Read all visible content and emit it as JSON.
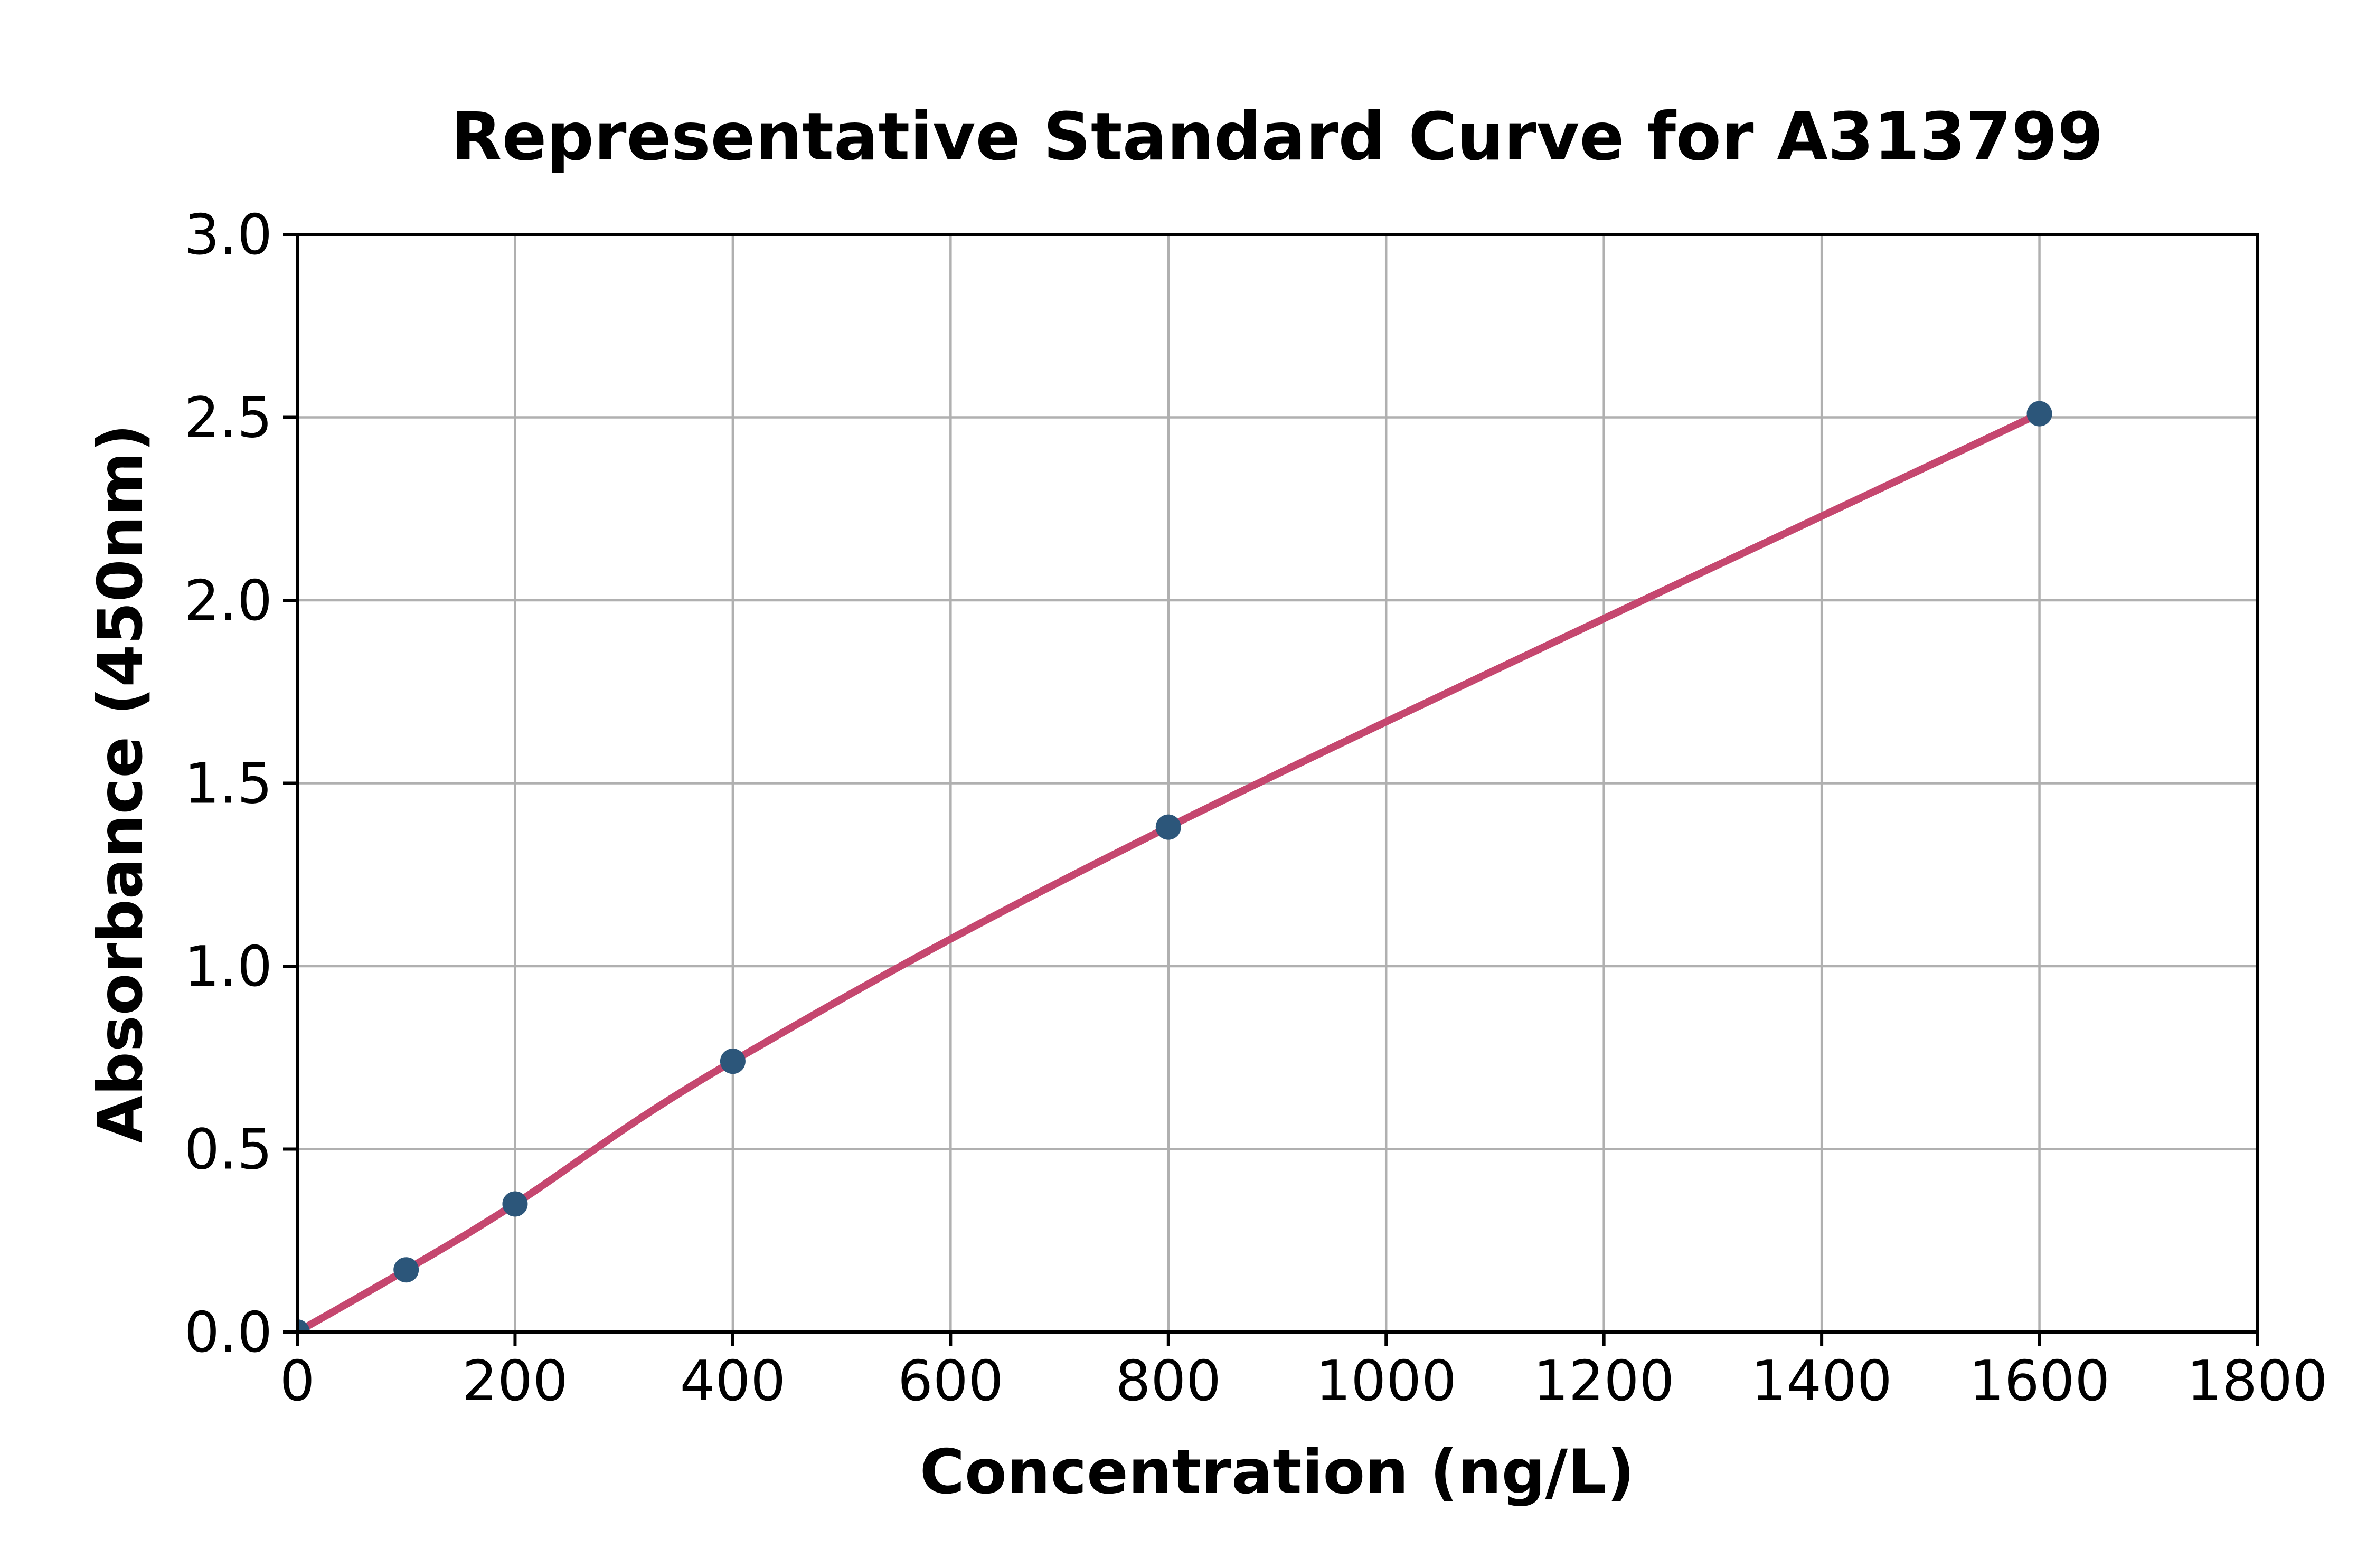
{
  "chart_data": {
    "type": "line",
    "title": "Representative Standard Curve for A313799",
    "xlabel": "Concentration (ng/L)",
    "ylabel": "Absorbance (450nm)",
    "x": [
      0,
      100,
      200,
      400,
      800,
      1600
    ],
    "y": [
      0.0,
      0.17,
      0.35,
      0.74,
      1.38,
      2.51
    ],
    "xlim": [
      0,
      1800
    ],
    "ylim": [
      0.0,
      3.0
    ],
    "xticks": [
      0,
      200,
      400,
      600,
      800,
      1000,
      1200,
      1400,
      1600,
      1800
    ],
    "yticks": [
      0.0,
      0.5,
      1.0,
      1.5,
      2.0,
      2.5,
      3.0
    ],
    "ytick_decimals": 1,
    "grid": true,
    "legend": null,
    "colors": {
      "line": "#C5476F",
      "marker": "#2C567A",
      "grid": "#B0B0B0",
      "spine": "#000000",
      "background": "#FFFFFF"
    }
  }
}
